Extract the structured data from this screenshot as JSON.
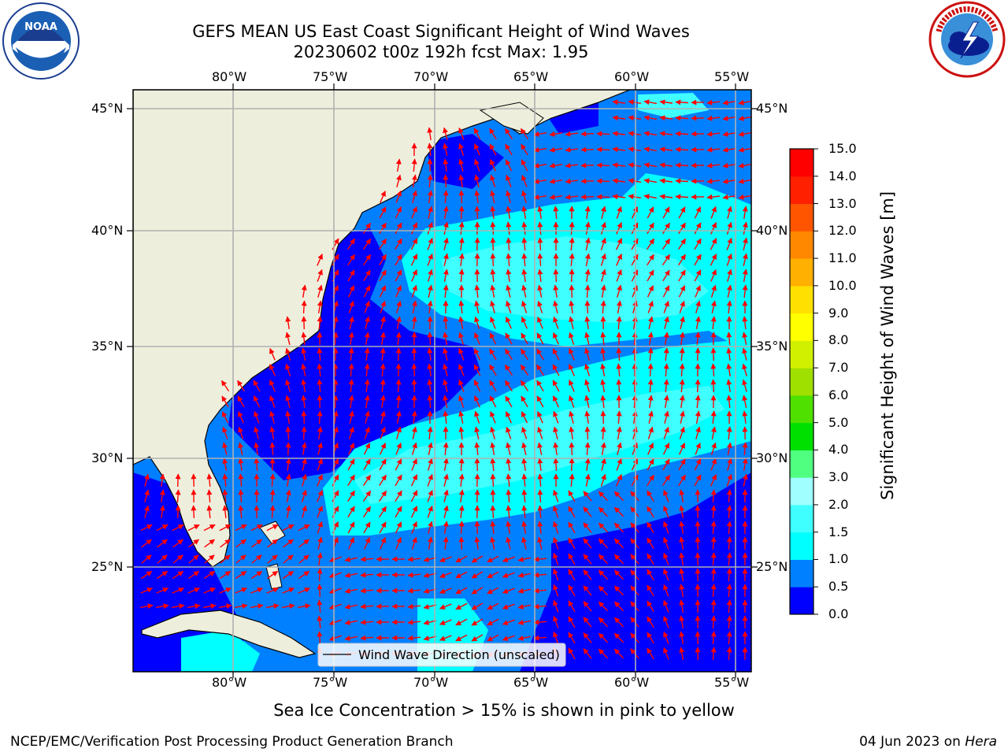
{
  "title_line1": "GEFS MEAN US East Coast Significant Height of Wind Waves",
  "title_line2": "20230602 t00z 192h fcst   Max: 1.95",
  "logos": {
    "left": "noaa-logo",
    "right": "nws-logo"
  },
  "map": {
    "lon_labels": [
      "80°W",
      "75°W",
      "70°W",
      "65°W",
      "60°W",
      "55°W"
    ],
    "lat_labels": [
      "45°N",
      "40°N",
      "35°N",
      "30°N",
      "25°N"
    ],
    "legend_label": "Wind Wave Direction (unscaled)",
    "arrow_color": "#ff0000",
    "land_color": "#eeeedd"
  },
  "colorbar": {
    "label": "Significant Height of Wind Waves [m]",
    "ticks": [
      "0.0",
      "0.5",
      "1.0",
      "1.5",
      "2.0",
      "3.0",
      "4.0",
      "5.0",
      "6.0",
      "7.0",
      "8.0",
      "9.0",
      "10.0",
      "11.0",
      "12.0",
      "13.0",
      "14.0",
      "15.0"
    ],
    "colors": [
      "#0000ff",
      "#0080ff",
      "#00ffff",
      "#40ffff",
      "#a0ffff",
      "#50ff80",
      "#00e000",
      "#50e000",
      "#a0e000",
      "#d0f000",
      "#ffff00",
      "#ffe000",
      "#ffb000",
      "#ff8800",
      "#ff5500",
      "#ff2000",
      "#ff0000"
    ]
  },
  "note": "Sea Ice Concentration > 15% is shown in pink to yellow",
  "footer_left": "NCEP/EMC/Verification Post Processing Product Generation Branch",
  "footer_right_date": "04 Jun 2023 on ",
  "footer_right_host": "Hera"
}
